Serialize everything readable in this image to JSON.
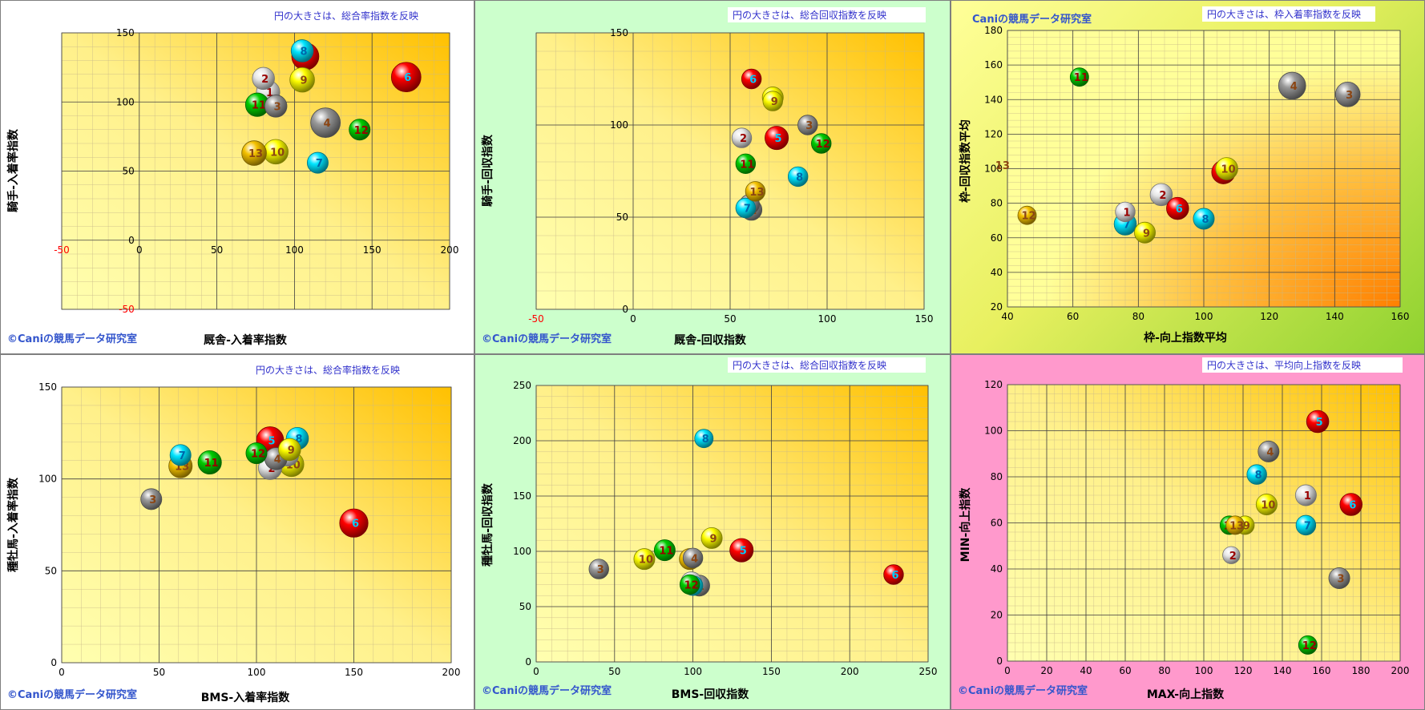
{
  "chart_data": [
    {
      "type": "scatter",
      "note": "円の大きさは、総合率指数を反映",
      "credit": "©Caniの競馬データ研究室",
      "xlabel": "厩舎-入着率指数",
      "ylabel": "騎手-入着率指数",
      "xlim": [
        -50,
        200
      ],
      "ylim": [
        -50,
        150
      ],
      "xticks": [
        "-50",
        "0",
        "50",
        "100",
        "150",
        "200"
      ],
      "yticks": [
        "-50",
        "0",
        "50",
        "100",
        "150"
      ],
      "points": [
        {
          "label": "1",
          "x": 83,
          "y": 107,
          "size": 95,
          "color": "#e6e6e6"
        },
        {
          "label": "2",
          "x": 80,
          "y": 117,
          "size": 90,
          "color": "#e6e6e6"
        },
        {
          "label": "3",
          "x": 88,
          "y": 97,
          "size": 90,
          "color": "#999999"
        },
        {
          "label": "4",
          "x": 120,
          "y": 85,
          "size": 120,
          "color": "#999999"
        },
        {
          "label": "5",
          "x": 107,
          "y": 133,
          "size": 110,
          "color": "#ff0000"
        },
        {
          "label": "6",
          "x": 172,
          "y": 118,
          "size": 120,
          "color": "#ff0000"
        },
        {
          "label": "7",
          "x": 115,
          "y": 56,
          "size": 85,
          "color": "#00e5ff"
        },
        {
          "label": "8",
          "x": 105,
          "y": 137,
          "size": 90,
          "color": "#00e5ff"
        },
        {
          "label": "9",
          "x": 105,
          "y": 116,
          "size": 100,
          "color": "#ffff00"
        },
        {
          "label": "10",
          "x": 88,
          "y": 64,
          "size": 100,
          "color": "#ffff00"
        },
        {
          "label": "11",
          "x": 76,
          "y": 98,
          "size": 95,
          "color": "#00cc00"
        },
        {
          "label": "12",
          "x": 142,
          "y": 80,
          "size": 85,
          "color": "#00cc00"
        },
        {
          "label": "13",
          "x": 74,
          "y": 63,
          "size": 100,
          "color": "#f5c200"
        }
      ]
    },
    {
      "type": "scatter",
      "note": "円の大きさは、総合回収指数を反映",
      "credit": "©Caniの競馬データ研究室",
      "xlabel": "厩舎-回収指数",
      "ylabel": "騎手-回収指数",
      "xlim": [
        -50,
        150
      ],
      "ylim": [
        0,
        150
      ],
      "xticks": [
        "-50",
        "0",
        "50",
        "100",
        "150"
      ],
      "yticks": [
        "0",
        "50",
        "100",
        "150"
      ],
      "points": [
        {
          "label": "1",
          "x": 61,
          "y": 54,
          "size": 85,
          "color": "#999999"
        },
        {
          "label": "2",
          "x": 56,
          "y": 93,
          "size": 80,
          "color": "#e6e6e6"
        },
        {
          "label": "3",
          "x": 90,
          "y": 100,
          "size": 80,
          "color": "#999999"
        },
        {
          "label": "4",
          "x": 60,
          "y": 57,
          "size": 80,
          "color": "#999999"
        },
        {
          "label": "5",
          "x": 74,
          "y": 93,
          "size": 95,
          "color": "#ff0000"
        },
        {
          "label": "6",
          "x": 61,
          "y": 125,
          "size": 80,
          "color": "#ff0000"
        },
        {
          "label": "7",
          "x": 58,
          "y": 55,
          "size": 80,
          "color": "#00e5ff"
        },
        {
          "label": "8",
          "x": 85,
          "y": 72,
          "size": 80,
          "color": "#00e5ff"
        },
        {
          "label": "9",
          "x": 72,
          "y": 113,
          "size": 80,
          "color": "#ffff00"
        },
        {
          "label": "10",
          "x": 72,
          "y": 115,
          "size": 85,
          "color": "#ffff00"
        },
        {
          "label": "11",
          "x": 58,
          "y": 79,
          "size": 80,
          "color": "#00cc00"
        },
        {
          "label": "12",
          "x": 97,
          "y": 90,
          "size": 80,
          "color": "#00cc00"
        },
        {
          "label": "13",
          "x": 63,
          "y": 64,
          "size": 80,
          "color": "#f5c200"
        }
      ]
    },
    {
      "type": "scatter",
      "note": "円の大きさは、枠入着率指数を反映",
      "credit": "Caniの競馬データ研究室",
      "xlabel": "枠-向上指数平均",
      "ylabel": "枠-回収指数平均",
      "xlim": [
        40,
        160
      ],
      "ylim": [
        20,
        180
      ],
      "xticks": [
        "40",
        "60",
        "80",
        "100",
        "120",
        "140",
        "160"
      ],
      "yticks": [
        "20",
        "40",
        "60",
        "80",
        "100",
        "120",
        "140",
        "160",
        "180"
      ],
      "points": [
        {
          "label": "1",
          "x": 76,
          "y": 75,
          "size": 80,
          "color": "#e6e6e6"
        },
        {
          "label": "2",
          "x": 87,
          "y": 85,
          "size": 90,
          "color": "#e6e6e6"
        },
        {
          "label": "3",
          "x": 144,
          "y": 143,
          "size": 100,
          "color": "#999999"
        },
        {
          "label": "4",
          "x": 127,
          "y": 148,
          "size": 110,
          "color": "#999999"
        },
        {
          "label": "5",
          "x": 106,
          "y": 98,
          "size": 95,
          "color": "#ff0000"
        },
        {
          "label": "6",
          "x": 92,
          "y": 77,
          "size": 90,
          "color": "#ff0000"
        },
        {
          "label": "7",
          "x": 76,
          "y": 68,
          "size": 90,
          "color": "#00e5ff"
        },
        {
          "label": "8",
          "x": 100,
          "y": 71,
          "size": 85,
          "color": "#00e5ff"
        },
        {
          "label": "9",
          "x": 82,
          "y": 63,
          "size": 85,
          "color": "#ffff00"
        },
        {
          "label": "10",
          "x": 107,
          "y": 100,
          "size": 90,
          "color": "#ffff00"
        },
        {
          "label": "11",
          "x": 62,
          "y": 153,
          "size": 75,
          "color": "#00cc00"
        },
        {
          "label": "12",
          "x": 46,
          "y": 73,
          "size": 75,
          "color": "#f5c200"
        },
        {
          "label": "13",
          "x": 38,
          "y": 102,
          "size": 0,
          "color": "#ffff00"
        }
      ]
    },
    {
      "type": "scatter",
      "note": "円の大きさは、総合率指数を反映",
      "credit": "©Caniの競馬データ研究室",
      "xlabel": "BMS-入着率指数",
      "ylabel": "種牡馬-入着率指数",
      "xlim": [
        0,
        200
      ],
      "ylim": [
        0,
        150
      ],
      "xticks": [
        "0",
        "50",
        "100",
        "150",
        "200"
      ],
      "yticks": [
        "0",
        "50",
        "100",
        "150"
      ],
      "points": [
        {
          "label": "1",
          "x": 116,
          "y": 113,
          "size": 90,
          "color": "#e6e6e6"
        },
        {
          "label": "2",
          "x": 107,
          "y": 106,
          "size": 95,
          "color": "#e6e6e6"
        },
        {
          "label": "3",
          "x": 46,
          "y": 89,
          "size": 85,
          "color": "#999999"
        },
        {
          "label": "4",
          "x": 110,
          "y": 111,
          "size": 90,
          "color": "#999999"
        },
        {
          "label": "5",
          "x": 107,
          "y": 121,
          "size": 110,
          "color": "#ff0000"
        },
        {
          "label": "6",
          "x": 150,
          "y": 76,
          "size": 115,
          "color": "#ff0000"
        },
        {
          "label": "7",
          "x": 61,
          "y": 113,
          "size": 85,
          "color": "#00e5ff"
        },
        {
          "label": "8",
          "x": 121,
          "y": 122,
          "size": 90,
          "color": "#00e5ff"
        },
        {
          "label": "9",
          "x": 117,
          "y": 116,
          "size": 90,
          "color": "#ffff00"
        },
        {
          "label": "10",
          "x": 118,
          "y": 108,
          "size": 100,
          "color": "#ffff00"
        },
        {
          "label": "11",
          "x": 76,
          "y": 109,
          "size": 95,
          "color": "#00cc00"
        },
        {
          "label": "12",
          "x": 100,
          "y": 114,
          "size": 85,
          "color": "#00cc00"
        },
        {
          "label": "13",
          "x": 61,
          "y": 107,
          "size": 95,
          "color": "#f5c200"
        }
      ]
    },
    {
      "type": "scatter",
      "note": "円の大きさは、総合回収指数を反映",
      "credit": "©Caniの競馬データ研究室",
      "xlabel": "BMS-回収指数",
      "ylabel": "種牡馬-回収指数",
      "xlim": [
        0,
        250
      ],
      "ylim": [
        0,
        250
      ],
      "xticks": [
        "0",
        "50",
        "100",
        "150",
        "200",
        "250"
      ],
      "yticks": [
        "0",
        "50",
        "100",
        "150",
        "200",
        "250"
      ],
      "points": [
        {
          "label": "1",
          "x": 104,
          "y": 69,
          "size": 85,
          "color": "#999999"
        },
        {
          "label": "2",
          "x": 99,
          "y": 72,
          "size": 85,
          "color": "#e6e6e6"
        },
        {
          "label": "3",
          "x": 40,
          "y": 84,
          "size": 80,
          "color": "#999999"
        },
        {
          "label": "4",
          "x": 100,
          "y": 94,
          "size": 80,
          "color": "#999999"
        },
        {
          "label": "5",
          "x": 131,
          "y": 101,
          "size": 95,
          "color": "#ff0000"
        },
        {
          "label": "6",
          "x": 228,
          "y": 79,
          "size": 80,
          "color": "#ff0000"
        },
        {
          "label": "7",
          "x": 100,
          "y": 69,
          "size": 80,
          "color": "#00e5ff"
        },
        {
          "label": "8",
          "x": 107,
          "y": 202,
          "size": 75,
          "color": "#00e5ff"
        },
        {
          "label": "9",
          "x": 112,
          "y": 112,
          "size": 85,
          "color": "#ffff00"
        },
        {
          "label": "10",
          "x": 69,
          "y": 93,
          "size": 85,
          "color": "#ffff00"
        },
        {
          "label": "11",
          "x": 82,
          "y": 101,
          "size": 85,
          "color": "#00cc00"
        },
        {
          "label": "12",
          "x": 98,
          "y": 70,
          "size": 80,
          "color": "#00cc00"
        },
        {
          "label": "13",
          "x": 98,
          "y": 93,
          "size": 85,
          "color": "#f5c200"
        }
      ]
    },
    {
      "type": "scatter",
      "note": "円の大きさは、平均向上指数を反映",
      "credit": "©Caniの競馬データ研究室",
      "xlabel": "MAX-向上指数",
      "ylabel": "MIN-向上指数",
      "xlim": [
        0,
        200
      ],
      "ylim": [
        0,
        120
      ],
      "xticks": [
        "0",
        "20",
        "40",
        "60",
        "80",
        "100",
        "120",
        "140",
        "160",
        "180",
        "200"
      ],
      "yticks": [
        "0",
        "20",
        "40",
        "60",
        "80",
        "100",
        "120"
      ],
      "points": [
        {
          "label": "1",
          "x": 152,
          "y": 72,
          "size": 85,
          "color": "#e6e6e6"
        },
        {
          "label": "2",
          "x": 114,
          "y": 46,
          "size": 70,
          "color": "#e6e6e6"
        },
        {
          "label": "3",
          "x": 169,
          "y": 36,
          "size": 85,
          "color": "#999999"
        },
        {
          "label": "4",
          "x": 133,
          "y": 91,
          "size": 85,
          "color": "#999999"
        },
        {
          "label": "5",
          "x": 158,
          "y": 104,
          "size": 90,
          "color": "#ff0000"
        },
        {
          "label": "6",
          "x": 175,
          "y": 68,
          "size": 90,
          "color": "#ff0000"
        },
        {
          "label": "7",
          "x": 152,
          "y": 59,
          "size": 80,
          "color": "#00e5ff"
        },
        {
          "label": "8",
          "x": 127,
          "y": 81,
          "size": 80,
          "color": "#00e5ff"
        },
        {
          "label": "9",
          "x": 121,
          "y": 59,
          "size": 75,
          "color": "#ffff00"
        },
        {
          "label": "10",
          "x": 132,
          "y": 68,
          "size": 85,
          "color": "#ffff00"
        },
        {
          "label": "11",
          "x": 113,
          "y": 59,
          "size": 75,
          "color": "#00cc00"
        },
        {
          "label": "12",
          "x": 153,
          "y": 7,
          "size": 75,
          "color": "#00cc00"
        },
        {
          "label": "13",
          "x": 116,
          "y": 59,
          "size": 75,
          "color": "#f5c200"
        }
      ]
    }
  ]
}
